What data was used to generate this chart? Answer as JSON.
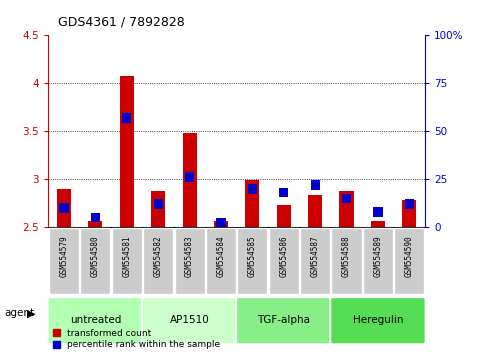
{
  "title": "GDS4361 / 7892828",
  "samples": [
    "GSM554579",
    "GSM554580",
    "GSM554581",
    "GSM554582",
    "GSM554583",
    "GSM554584",
    "GSM554585",
    "GSM554586",
    "GSM554587",
    "GSM554588",
    "GSM554589",
    "GSM554590"
  ],
  "red_values": [
    2.9,
    2.56,
    4.08,
    2.88,
    3.48,
    2.56,
    2.99,
    2.73,
    2.84,
    2.88,
    2.56,
    2.78
  ],
  "blue_values_pct": [
    10,
    5,
    57,
    12,
    26,
    2,
    20,
    18,
    22,
    15,
    8,
    12
  ],
  "ylim_left": [
    2.5,
    4.5
  ],
  "ylim_right": [
    0,
    100
  ],
  "yticks_left": [
    2.5,
    3.0,
    3.5,
    4.0,
    4.5
  ],
  "yticks_right": [
    0,
    25,
    50,
    75,
    100
  ],
  "ytick_labels_left": [
    "2.5",
    "3",
    "3.5",
    "4",
    "4.5"
  ],
  "ytick_labels_right": [
    "0",
    "25",
    "50",
    "75",
    "100%"
  ],
  "groups": [
    {
      "label": "untreated",
      "indices": [
        0,
        1,
        2
      ],
      "color": "#b3ffb3"
    },
    {
      "label": "AP1510",
      "indices": [
        3,
        4,
        5
      ],
      "color": "#ccffcc"
    },
    {
      "label": "TGF-alpha",
      "indices": [
        6,
        7,
        8
      ],
      "color": "#88ee88"
    },
    {
      "label": "Heregulin",
      "indices": [
        9,
        10,
        11
      ],
      "color": "#55dd55"
    }
  ],
  "bar_width": 0.45,
  "red_color": "#cc0000",
  "blue_color": "#0000cc",
  "sample_box_color": "#cccccc",
  "baseline": 2.5,
  "gridcolor": "black"
}
